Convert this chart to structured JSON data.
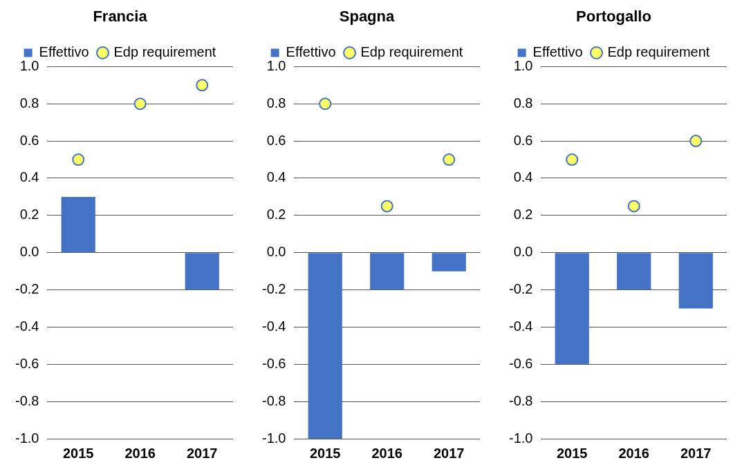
{
  "chart_data": [
    {
      "type": "bar",
      "title": "Francia",
      "categories": [
        "2015",
        "2016",
        "2017"
      ],
      "series": [
        {
          "name": "Effettivo",
          "color": "#4472c4",
          "values": [
            0.3,
            null,
            -0.2
          ]
        },
        {
          "name": "Edp requirement",
          "type": "scatter",
          "color": "#ffff66",
          "values": [
            0.5,
            0.8,
            0.9
          ]
        }
      ],
      "ylim": [
        -1,
        1
      ],
      "yticks": [
        {
          "value": -1,
          "label": "-1.0"
        },
        {
          "value": -0.8,
          "label": "-0.8"
        },
        {
          "value": -0.6,
          "label": "-0.6"
        },
        {
          "value": -0.4,
          "label": "-0.4"
        },
        {
          "value": -0.2,
          "label": "-0.2"
        },
        {
          "value": 0,
          "label": "0.0"
        },
        {
          "value": 0.2,
          "label": "0.2"
        },
        {
          "value": 0.4,
          "label": "0.4"
        },
        {
          "value": 0.6,
          "label": "0.6"
        },
        {
          "value": 0.8,
          "label": "0.8"
        },
        {
          "value": 1,
          "label": "1.0"
        }
      ],
      "grid": "y",
      "legend": "top",
      "marker": "circle"
    },
    {
      "type": "bar",
      "title": "Spagna",
      "categories": [
        "2015",
        "2016",
        "2017"
      ],
      "series": [
        {
          "name": "Effettivo",
          "color": "#4472c4",
          "values": [
            -1.0,
            -0.2,
            -0.1
          ]
        },
        {
          "name": "Edp requirement",
          "type": "scatter",
          "color": "#ffff66",
          "values": [
            0.8,
            0.25,
            0.5
          ]
        }
      ],
      "ylim": [
        -1,
        1
      ],
      "yticks": [
        {
          "value": -1,
          "label": "-1.0"
        },
        {
          "value": -0.8,
          "label": "-0.8"
        },
        {
          "value": -0.6,
          "label": "-0.6"
        },
        {
          "value": -0.4,
          "label": "-0.4"
        },
        {
          "value": -0.2,
          "label": "-0.2"
        },
        {
          "value": 0,
          "label": "0.0"
        },
        {
          "value": 0.2,
          "label": "0.2"
        },
        {
          "value": 0.4,
          "label": "0.4"
        },
        {
          "value": 0.6,
          "label": "0.6"
        },
        {
          "value": 0.8,
          "label": "0.8"
        },
        {
          "value": 1,
          "label": "1.0"
        }
      ],
      "grid": "y",
      "legend": "top",
      "marker": "circle"
    },
    {
      "type": "bar",
      "title": "Portogallo",
      "categories": [
        "2015",
        "2016",
        "2017"
      ],
      "series": [
        {
          "name": "Effettivo",
          "color": "#4472c4",
          "values": [
            -0.6,
            -0.2,
            -0.3
          ]
        },
        {
          "name": "Edp requirement",
          "type": "scatter",
          "color": "#ffff66",
          "values": [
            0.5,
            0.25,
            0.6
          ]
        }
      ],
      "ylim": [
        -1,
        1
      ],
      "yticks": [
        {
          "value": -1,
          "label": "-1.0"
        },
        {
          "value": -0.8,
          "label": "-0.8"
        },
        {
          "value": -0.6,
          "label": "-0.6"
        },
        {
          "value": -0.4,
          "label": "-0.4"
        },
        {
          "value": -0.2,
          "label": "-0.2"
        },
        {
          "value": 0,
          "label": "0.0"
        },
        {
          "value": 0.2,
          "label": "0.2"
        },
        {
          "value": 0.4,
          "label": "0.4"
        },
        {
          "value": 0.6,
          "label": "0.6"
        },
        {
          "value": 0.8,
          "label": "0.8"
        },
        {
          "value": 1,
          "label": "1.0"
        }
      ],
      "grid": "y",
      "legend": "top",
      "marker": "circle"
    }
  ]
}
